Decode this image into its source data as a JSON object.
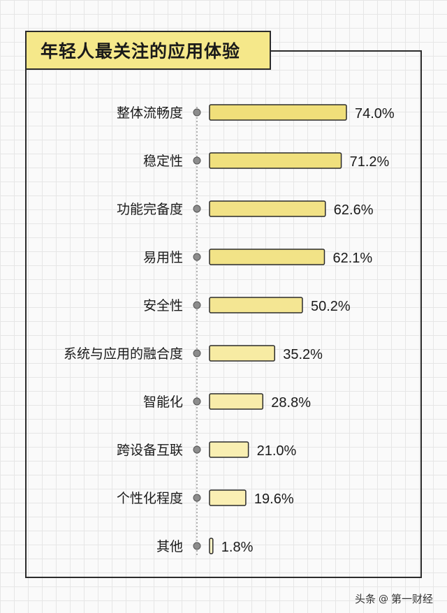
{
  "chart_data": {
    "type": "bar",
    "orientation": "horizontal",
    "title": "年轻人最关注的应用体验",
    "categories": [
      "整体流畅度",
      "稳定性",
      "功能完备度",
      "易用性",
      "安全性",
      "系统与应用的融合度",
      "智能化",
      "跨设备互联",
      "个性化程度",
      "其他"
    ],
    "values": [
      74.0,
      71.2,
      62.6,
      62.1,
      50.2,
      35.2,
      28.8,
      21.0,
      19.6,
      1.8
    ],
    "value_labels": [
      "74.0%",
      "71.2%",
      "62.6%",
      "62.1%",
      "50.2%",
      "35.2%",
      "28.8%",
      "21.0%",
      "19.6%",
      "1.8%"
    ],
    "xlim": [
      0,
      74.0
    ],
    "grid": true,
    "colors": {
      "bar_strong": "#f0df7a",
      "bar_light": "#fdf5c8",
      "outline": "#2b2b2b",
      "title_bg": "#f5e88a"
    }
  },
  "watermark": {
    "prefix": "头条",
    "at": "@",
    "name": "第一财经"
  }
}
